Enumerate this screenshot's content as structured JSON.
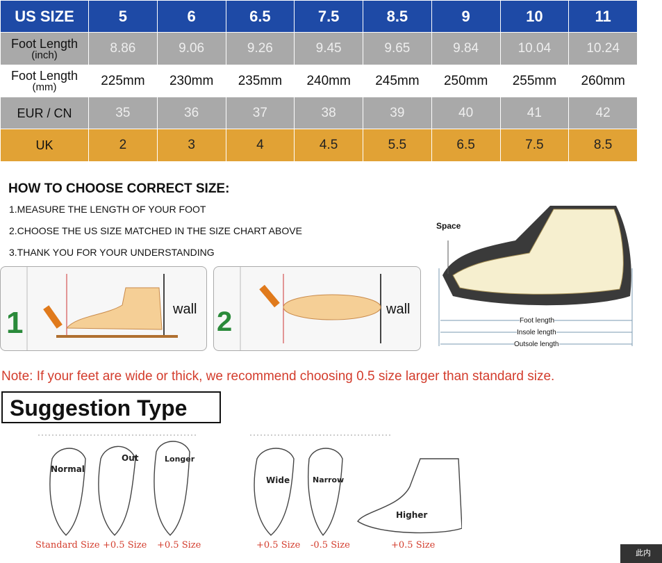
{
  "size_table": {
    "row_us": {
      "label": "US SIZE",
      "values": [
        "5",
        "6",
        "6.5",
        "7.5",
        "8.5",
        "9",
        "10",
        "11"
      ]
    },
    "row_inch": {
      "label": "Foot Length",
      "unit": "(inch)",
      "values": [
        "8.86",
        "9.06",
        "9.26",
        "9.45",
        "9.65",
        "9.84",
        "10.04",
        "10.24"
      ]
    },
    "row_mm": {
      "label": "Foot Length",
      "unit": "(mm)",
      "values": [
        "225mm",
        "230mm",
        "235mm",
        "240mm",
        "245mm",
        "250mm",
        "255mm",
        "260mm"
      ]
    },
    "row_eur": {
      "label": "EUR / CN",
      "values": [
        "35",
        "36",
        "37",
        "38",
        "39",
        "40",
        "41",
        "42"
      ]
    },
    "row_uk": {
      "label": "UK",
      "values": [
        "2",
        "3",
        "4",
        "4.5",
        "5.5",
        "6.5",
        "7.5",
        "8.5"
      ]
    }
  },
  "howto": {
    "title": "HOW TO CHOOSE CORRECT SIZE:",
    "steps": [
      "1.MEASURE THE LENGTH OF YOUR FOOT",
      "2.CHOOSE THE US SIZE MATCHED IN THE SIZE CHART ABOVE",
      "3.THANK YOU FOR YOUR UNDERSTANDING"
    ],
    "panel1_wall": "wall",
    "panel2_wall": "wall"
  },
  "shoe_diagram": {
    "space": "Space",
    "foot_length": "Foot length",
    "insole_length": "Insole length",
    "outsole_length": "Outsole length"
  },
  "note": "Note: If your feet are wide or thick, we recommend choosing 0.5 size larger than standard size.",
  "suggestion": {
    "title": "Suggestion Type",
    "labels": {
      "normal": "Normal",
      "out": "Out",
      "longer": "Longer",
      "wide": "Wide",
      "narrow": "Narrow",
      "higher": "Higher"
    },
    "captions": [
      "Standard Size",
      "+0.5 Size",
      "+0.5 Size",
      "+0.5 Size",
      "-0.5 Size",
      "+0.5 Size"
    ]
  },
  "colors": {
    "blue": "#1e4aa6",
    "gray": "#a9a9a9",
    "orange": "#e1a235",
    "note_red": "#d33c2c"
  },
  "corner_badge": "此内"
}
